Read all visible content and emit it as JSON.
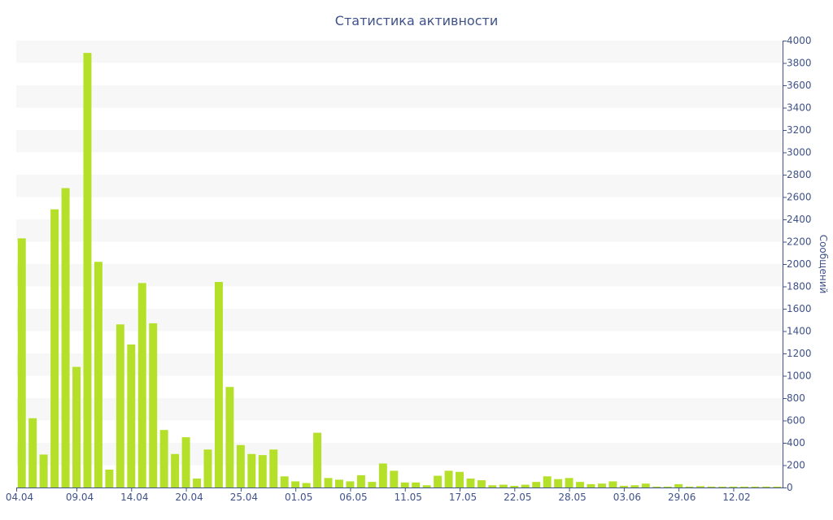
{
  "chart_data": {
    "type": "bar",
    "title": "Статистика активности",
    "xlabel": "",
    "ylabel": "Сообщений",
    "y_axis_position": "right",
    "ylim": [
      0,
      4000
    ],
    "y_ticks": [
      0,
      200,
      400,
      600,
      800,
      1000,
      1200,
      1400,
      1600,
      1800,
      2000,
      2200,
      2400,
      2600,
      2800,
      3000,
      3200,
      3400,
      3600,
      3800,
      4000
    ],
    "x_tick_labels": [
      {
        "label": "04.04",
        "index": 0
      },
      {
        "label": "09.04",
        "index": 5
      },
      {
        "label": "14.04",
        "index": 10
      },
      {
        "label": "20.04",
        "index": 15
      },
      {
        "label": "25.04",
        "index": 20
      },
      {
        "label": "01.05",
        "index": 25
      },
      {
        "label": "06.05",
        "index": 30
      },
      {
        "label": "11.05",
        "index": 35
      },
      {
        "label": "17.05",
        "index": 40
      },
      {
        "label": "22.05",
        "index": 45
      },
      {
        "label": "28.05",
        "index": 50
      },
      {
        "label": "03.06",
        "index": 55
      },
      {
        "label": "29.06",
        "index": 60
      },
      {
        "label": "12.02",
        "index": 65
      }
    ],
    "values": [
      2230,
      620,
      295,
      2490,
      2680,
      1080,
      3890,
      2020,
      160,
      1460,
      1280,
      1830,
      1470,
      515,
      300,
      450,
      80,
      340,
      1840,
      900,
      380,
      300,
      290,
      340,
      100,
      55,
      40,
      490,
      85,
      70,
      55,
      110,
      50,
      215,
      150,
      45,
      45,
      20,
      105,
      150,
      140,
      80,
      65,
      20,
      25,
      15,
      25,
      50,
      100,
      75,
      85,
      50,
      30,
      35,
      55,
      15,
      20,
      35,
      8,
      8,
      30,
      8,
      12,
      8,
      8,
      8,
      8,
      8,
      8,
      8
    ],
    "grid": "horizontal bands",
    "legend": "none",
    "colors": {
      "bar": "#b5e02a",
      "band": "#f7f7f7",
      "axis": "#3f5289",
      "text": "#3f5289"
    }
  }
}
